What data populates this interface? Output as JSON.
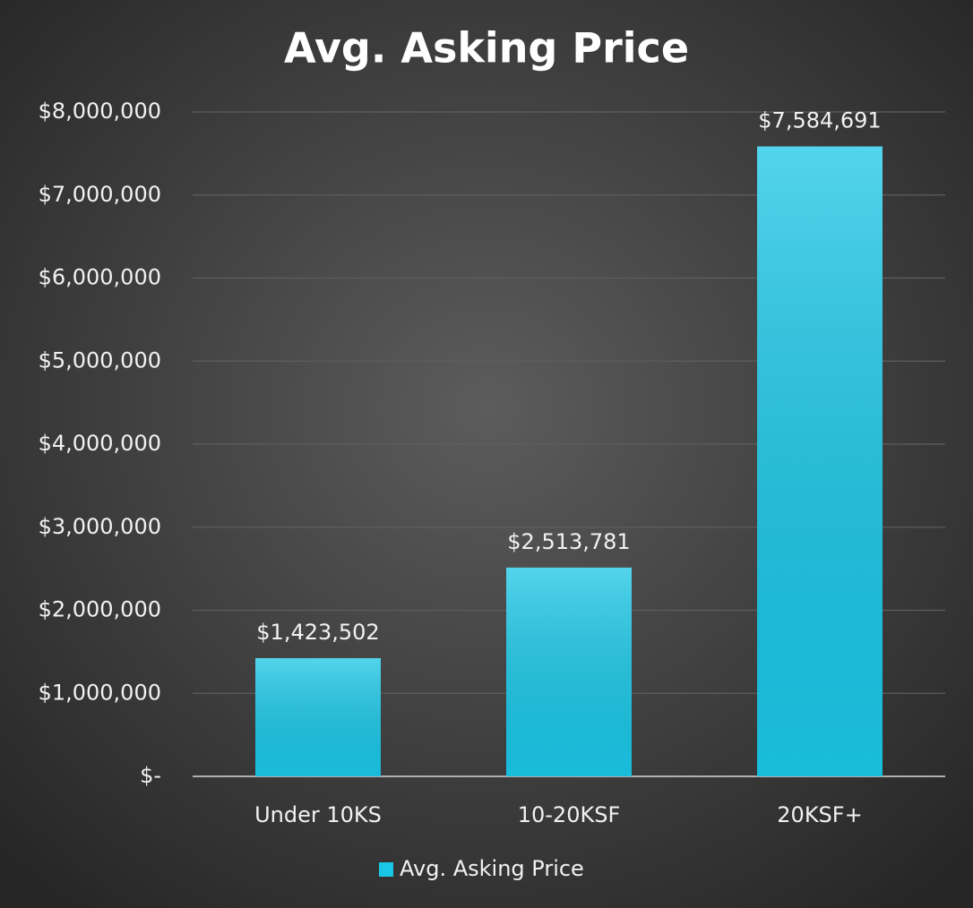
{
  "chart_data": {
    "type": "bar",
    "title": "Avg. Asking Price",
    "categories": [
      "Under 10KS",
      "10-20KSF",
      "20KSF+"
    ],
    "series": [
      {
        "name": "Avg. Asking Price",
        "color": "#1ac6e6",
        "values": [
          1423502,
          2513781,
          7584691
        ],
        "value_labels": [
          "$1,423,502",
          "$2,513,781",
          "$7,584,691"
        ]
      }
    ],
    "ylim": [
      0,
      8000000
    ],
    "yticks": [
      {
        "value": 0,
        "label": "$-"
      },
      {
        "value": 1000000,
        "label": "$1,000,000"
      },
      {
        "value": 2000000,
        "label": "$2,000,000"
      },
      {
        "value": 3000000,
        "label": "$3,000,000"
      },
      {
        "value": 4000000,
        "label": "$4,000,000"
      },
      {
        "value": 5000000,
        "label": "$5,000,000"
      },
      {
        "value": 6000000,
        "label": "$6,000,000"
      },
      {
        "value": 7000000,
        "label": "$7,000,000"
      },
      {
        "value": 8000000,
        "label": "$8,000,000"
      }
    ],
    "grid": true,
    "legend": "bottom"
  }
}
